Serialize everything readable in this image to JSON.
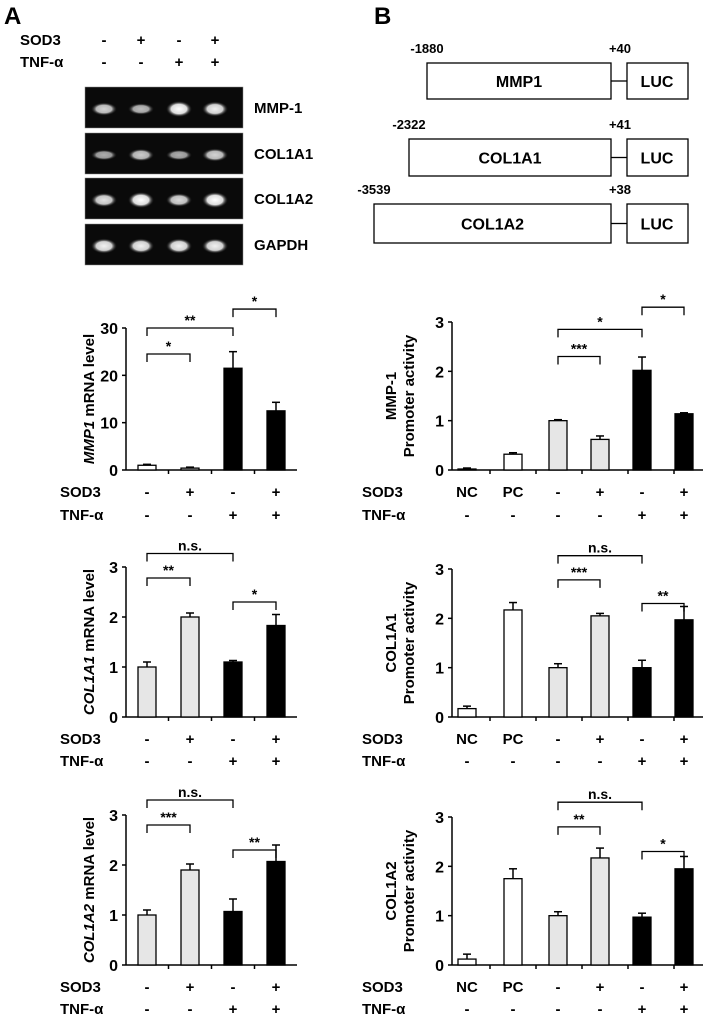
{
  "panel_labels": {
    "a": "A",
    "b": "B"
  },
  "gel": {
    "row_labels": {
      "sod3": "SOD3",
      "tnf": "TNF-α"
    },
    "sod3": [
      "-",
      "+",
      "-",
      "+"
    ],
    "tnf": [
      "-",
      "-",
      "+",
      "+"
    ],
    "bands": [
      {
        "label": "MMP-1",
        "intensity": [
          0.7,
          0.55,
          1.0,
          0.9
        ]
      },
      {
        "label": "COL1A1",
        "intensity": [
          0.45,
          0.65,
          0.45,
          0.7
        ]
      },
      {
        "label": "COL1A2",
        "intensity": [
          0.8,
          1.0,
          0.75,
          1.0
        ]
      },
      {
        "label": "GAPDH",
        "intensity": [
          0.9,
          0.9,
          0.9,
          0.9
        ]
      }
    ]
  },
  "constructs": [
    {
      "name": "MMP1",
      "start": "-1880",
      "end": "+40",
      "reporter": "LUC"
    },
    {
      "name": "COL1A1",
      "start": "-2322",
      "end": "+41",
      "reporter": "LUC"
    },
    {
      "name": "COL1A2",
      "start": "-3539",
      "end": "+38",
      "reporter": "LUC"
    }
  ],
  "colors": {
    "white": "#ffffff",
    "gray": "#e6e6e6",
    "black": "#000000"
  },
  "chart_data": [
    {
      "type": "bar",
      "id": "L1",
      "ylabel_italic": "MMP1",
      "ylabel": " mRNA level",
      "ylim": [
        0,
        30
      ],
      "yticks": [
        0,
        10,
        20,
        30
      ],
      "row_labels": [
        "SOD3",
        "TNF-α"
      ],
      "sod3": [
        "-",
        "+",
        "-",
        "+"
      ],
      "tnf": [
        "-",
        "-",
        "+",
        "+"
      ],
      "values": [
        1.0,
        0.4,
        21.5,
        12.5
      ],
      "errors": [
        0.2,
        0.2,
        3.5,
        1.8
      ],
      "fills": [
        "white",
        "gray",
        "black",
        "black"
      ],
      "significance": [
        {
          "from": 0,
          "to": 2,
          "level": 30,
          "label": "**"
        },
        {
          "from": 0,
          "to": 1,
          "level": 24.5,
          "label": "*"
        },
        {
          "from": 2,
          "to": 3,
          "level": 34,
          "label": "*"
        }
      ]
    },
    {
      "type": "bar",
      "id": "L2",
      "ylabel_italic": "COL1A1",
      "ylabel": " mRNA level",
      "ylim": [
        0,
        3
      ],
      "yticks": [
        0,
        1,
        2,
        3
      ],
      "row_labels": [
        "SOD3",
        "TNF-α"
      ],
      "sod3": [
        "-",
        "+",
        "-",
        "+"
      ],
      "tnf": [
        "-",
        "-",
        "+",
        "+"
      ],
      "values": [
        1.0,
        2.0,
        1.1,
        1.83
      ],
      "errors": [
        0.1,
        0.08,
        0.03,
        0.22
      ],
      "fills": [
        "gray",
        "gray",
        "black",
        "black"
      ],
      "significance": [
        {
          "from": 0,
          "to": 2,
          "level": 3.27,
          "label": "n.s."
        },
        {
          "from": 0,
          "to": 1,
          "level": 2.78,
          "label": "**"
        },
        {
          "from": 2,
          "to": 3,
          "level": 2.3,
          "label": "*"
        }
      ]
    },
    {
      "type": "bar",
      "id": "L3",
      "ylabel_italic": "COL1A2",
      "ylabel": " mRNA level",
      "ylim": [
        0,
        3
      ],
      "yticks": [
        0,
        1,
        2,
        3
      ],
      "row_labels": [
        "SOD3",
        "TNF-α"
      ],
      "sod3": [
        "-",
        "+",
        "-",
        "+"
      ],
      "tnf": [
        "-",
        "-",
        "+",
        "+"
      ],
      "values": [
        1.0,
        1.9,
        1.07,
        2.07
      ],
      "errors": [
        0.1,
        0.12,
        0.25,
        0.33
      ],
      "fills": [
        "gray",
        "gray",
        "black",
        "black"
      ],
      "significance": [
        {
          "from": 0,
          "to": 2,
          "level": 3.3,
          "label": "n.s."
        },
        {
          "from": 0,
          "to": 1,
          "level": 2.8,
          "label": "***"
        },
        {
          "from": 2,
          "to": 3,
          "level": 2.3,
          "label": "**"
        }
      ]
    },
    {
      "type": "bar",
      "id": "R1",
      "ylabel_line1": "MMP-1",
      "ylabel": "Promoter activity",
      "ylim": [
        0,
        3
      ],
      "yticks": [
        0,
        1,
        2,
        3
      ],
      "row_labels": [
        "SOD3",
        "TNF-α"
      ],
      "sod3": [
        "NC",
        "PC",
        "-",
        "+",
        "-",
        "+"
      ],
      "tnf": [
        "-",
        "-",
        "-",
        "-",
        "+",
        "+"
      ],
      "values": [
        0.02,
        0.32,
        1.0,
        0.62,
        2.02,
        1.14
      ],
      "errors": [
        0.02,
        0.03,
        0.02,
        0.07,
        0.27,
        0.02
      ],
      "fills": [
        "white",
        "white",
        "gray",
        "gray",
        "black",
        "black"
      ],
      "significance": [
        {
          "from": 2,
          "to": 4,
          "level": 2.85,
          "label": "*"
        },
        {
          "from": 2,
          "to": 3,
          "level": 2.3,
          "label": "***"
        },
        {
          "from": 4,
          "to": 5,
          "level": 3.3,
          "label": "*"
        }
      ]
    },
    {
      "type": "bar",
      "id": "R2",
      "ylabel_line1": "COL1A1",
      "ylabel": "Promoter activity",
      "ylim": [
        0,
        3
      ],
      "yticks": [
        0,
        1,
        2,
        3
      ],
      "row_labels": [
        "SOD3",
        "TNF-α"
      ],
      "sod3": [
        "NC",
        "PC",
        "-",
        "+",
        "-",
        "+"
      ],
      "tnf": [
        "-",
        "-",
        "-",
        "-",
        "+",
        "+"
      ],
      "values": [
        0.17,
        2.17,
        1.0,
        2.05,
        1.0,
        1.97
      ],
      "errors": [
        0.05,
        0.15,
        0.08,
        0.05,
        0.15,
        0.27
      ],
      "fills": [
        "white",
        "white",
        "gray",
        "gray",
        "black",
        "black"
      ],
      "significance": [
        {
          "from": 2,
          "to": 4,
          "level": 3.27,
          "label": "n.s."
        },
        {
          "from": 2,
          "to": 3,
          "level": 2.78,
          "label": "***"
        },
        {
          "from": 4,
          "to": 5,
          "level": 2.3,
          "label": "**"
        }
      ]
    },
    {
      "type": "bar",
      "id": "R3",
      "ylabel_line1": "COL1A2",
      "ylabel": "Promoter activity",
      "ylim": [
        0,
        3
      ],
      "yticks": [
        0,
        1,
        2,
        3
      ],
      "row_labels": [
        "SOD3",
        "TNF-α"
      ],
      "sod3": [
        "NC",
        "PC",
        "-",
        "+",
        "-",
        "+"
      ],
      "tnf": [
        "-",
        "-",
        "-",
        "-",
        "+",
        "+"
      ],
      "values": [
        0.12,
        1.75,
        1.0,
        2.17,
        0.97,
        1.95
      ],
      "errors": [
        0.1,
        0.2,
        0.08,
        0.2,
        0.08,
        0.25
      ],
      "fills": [
        "white",
        "white",
        "gray",
        "gray",
        "black",
        "black"
      ],
      "significance": [
        {
          "from": 2,
          "to": 4,
          "level": 3.3,
          "label": "n.s."
        },
        {
          "from": 2,
          "to": 3,
          "level": 2.8,
          "label": "**"
        },
        {
          "from": 4,
          "to": 5,
          "level": 2.3,
          "label": "*"
        }
      ]
    }
  ]
}
